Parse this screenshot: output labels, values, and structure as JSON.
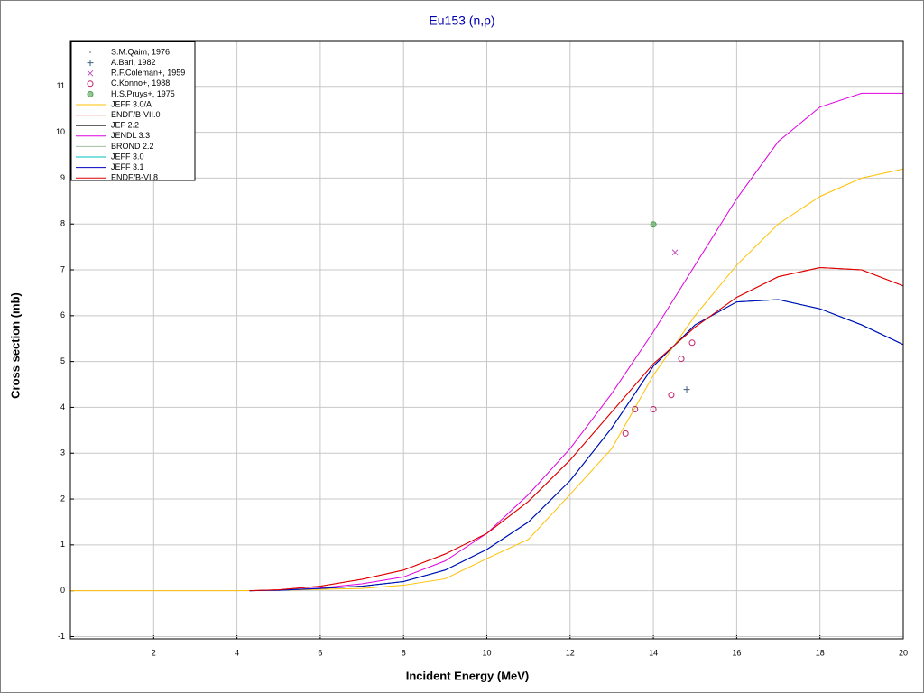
{
  "chart_data": {
    "type": "line",
    "title": "Eu153 (n,p)",
    "x_label": "Incident Energy (MeV)",
    "y_label": "Cross section (mb)",
    "xlim": [
      0,
      20
    ],
    "ylim": [
      -1.05,
      12
    ],
    "xticks": [
      2,
      4,
      6,
      8,
      10,
      12,
      14,
      16,
      18,
      20
    ],
    "yticks": [
      -1,
      0,
      1,
      2,
      3,
      4,
      5,
      6,
      7,
      8,
      9,
      10,
      11
    ],
    "grid": true,
    "legend": "top-left",
    "series": [
      {
        "name": "S.M.Qaim, 1976",
        "kind": "scatter",
        "marker": "dot",
        "color": "#a0a0a0",
        "x": [],
        "values": []
      },
      {
        "name": "A.Bari, 1982",
        "kind": "scatter",
        "marker": "plus",
        "color": "#406080",
        "x": [
          14.8
        ],
        "values": [
          4.39
        ]
      },
      {
        "name": "R.F.Coleman+, 1959",
        "kind": "scatter",
        "marker": "cross",
        "color": "#c050c0",
        "x": [
          14.52
        ],
        "values": [
          7.38
        ]
      },
      {
        "name": "C.Konno+, 1988",
        "kind": "scatter",
        "marker": "circle",
        "color": "#c0206a",
        "x": [
          13.33,
          13.56,
          14.0,
          14.43,
          14.67,
          14.93
        ],
        "values": [
          3.43,
          3.96,
          3.96,
          4.27,
          5.06,
          5.41
        ]
      },
      {
        "name": "H.S.Pruys+, 1975",
        "kind": "scatter",
        "marker": "circle-filled",
        "color": "#50a050",
        "x": [
          14.0
        ],
        "values": [
          7.99
        ]
      },
      {
        "name": "JEFF 3.0/A",
        "kind": "line",
        "color": "#ffc000",
        "x": [
          0,
          1,
          2,
          3,
          4,
          5,
          6,
          7,
          8,
          9,
          10,
          11,
          12,
          13,
          14,
          15,
          16,
          17,
          18,
          19,
          20
        ],
        "values": [
          0,
          0,
          0,
          0,
          0,
          0.01,
          0.03,
          0.05,
          0.12,
          0.26,
          0.7,
          1.12,
          2.1,
          3.1,
          4.7,
          6.0,
          7.1,
          8.0,
          8.6,
          9.0,
          9.2
        ]
      },
      {
        "name": "ENDF/B-VII.0",
        "kind": "line",
        "color": "#e00000",
        "x": [
          4.3,
          5,
          6,
          7,
          8,
          9,
          10,
          11,
          12,
          13,
          14,
          15,
          16,
          17,
          18,
          19,
          20
        ],
        "values": [
          0,
          0.02,
          0.1,
          0.25,
          0.45,
          0.8,
          1.25,
          1.95,
          2.85,
          3.9,
          4.95,
          5.75,
          6.4,
          6.85,
          7.05,
          7.0,
          6.65
        ]
      },
      {
        "name": "JEF 2.2",
        "kind": "line",
        "color": "#303030",
        "x": [
          4.3,
          5,
          6,
          7,
          8,
          9,
          10,
          11,
          12,
          13,
          14,
          15,
          16,
          17,
          18,
          19,
          20
        ],
        "values": [
          0,
          0.01,
          0.05,
          0.1,
          0.2,
          0.45,
          0.9,
          1.5,
          2.4,
          3.55,
          4.9,
          5.8,
          6.3,
          6.35,
          6.15,
          5.8,
          5.37
        ]
      },
      {
        "name": "JENDL 3.3",
        "kind": "line",
        "color": "#e000e0",
        "x": [
          4.3,
          5,
          6,
          7,
          8,
          9,
          10,
          11,
          12,
          13,
          14,
          15,
          16,
          17,
          18,
          19,
          20
        ],
        "values": [
          0,
          0.01,
          0.06,
          0.15,
          0.3,
          0.65,
          1.25,
          2.1,
          3.1,
          4.3,
          5.65,
          7.1,
          8.55,
          9.8,
          10.55,
          10.85,
          10.85
        ]
      },
      {
        "name": "BROND 2.2",
        "kind": "line",
        "color": "#a0c0a0",
        "x": [
          4.3,
          5,
          6,
          7,
          8,
          9,
          10,
          11,
          12,
          13,
          14,
          15,
          16,
          17,
          18,
          19,
          20
        ],
        "values": [
          0,
          0.01,
          0.05,
          0.1,
          0.2,
          0.45,
          0.9,
          1.5,
          2.4,
          3.55,
          4.9,
          5.8,
          6.3,
          6.35,
          6.15,
          5.8,
          5.37
        ]
      },
      {
        "name": "JEFF 3.0",
        "kind": "line",
        "color": "#00c0c0",
        "x": [
          4.3,
          5,
          6,
          7,
          8,
          9,
          10,
          11,
          12,
          13,
          14,
          15,
          16,
          17,
          18,
          19,
          20
        ],
        "values": [
          0,
          0.01,
          0.05,
          0.1,
          0.2,
          0.45,
          0.9,
          1.5,
          2.4,
          3.55,
          4.9,
          5.8,
          6.3,
          6.35,
          6.15,
          5.8,
          5.37
        ]
      },
      {
        "name": "JEFF 3.1",
        "kind": "line",
        "color": "#0000c0",
        "x": [
          4.3,
          5,
          6,
          7,
          8,
          9,
          10,
          11,
          12,
          13,
          14,
          15,
          16,
          17,
          18,
          19,
          20
        ],
        "values": [
          0,
          0.01,
          0.05,
          0.1,
          0.2,
          0.45,
          0.9,
          1.5,
          2.4,
          3.55,
          4.9,
          5.8,
          6.3,
          6.35,
          6.15,
          5.8,
          5.37
        ]
      },
      {
        "name": "ENDF/B-VI.8",
        "kind": "line",
        "color": "#e00000",
        "x": [
          4.3,
          5,
          6,
          7,
          8,
          9,
          10,
          11,
          12,
          13,
          14,
          15,
          16,
          17,
          18,
          19,
          20
        ],
        "values": [
          0,
          0.02,
          0.1,
          0.25,
          0.45,
          0.8,
          1.25,
          1.95,
          2.85,
          3.9,
          4.95,
          5.75,
          6.4,
          6.85,
          7.05,
          7.0,
          6.65
        ]
      }
    ]
  }
}
